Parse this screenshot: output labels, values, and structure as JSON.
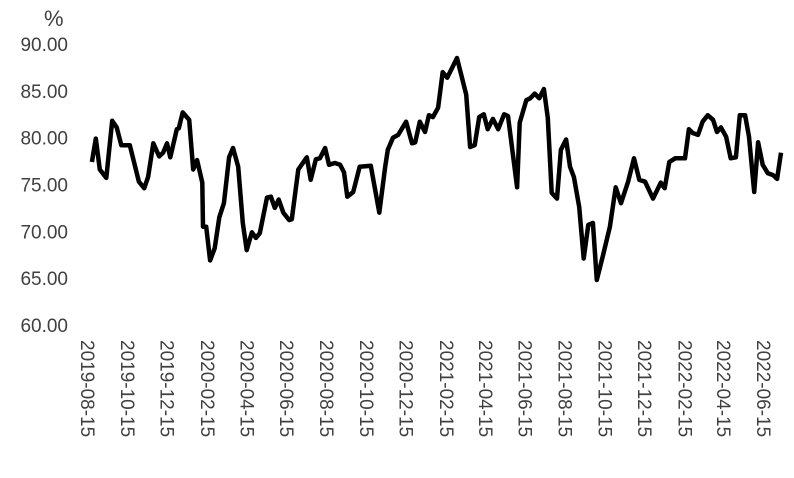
{
  "chart_data": {
    "type": "line",
    "title": "",
    "ylabel": "%",
    "xlabel": "",
    "ylim": [
      60,
      90
    ],
    "yticks": [
      "60.00",
      "65.00",
      "70.00",
      "75.00",
      "80.00",
      "85.00",
      "90.00"
    ],
    "xticks": [
      "2019-08-15",
      "2019-10-15",
      "2019-12-15",
      "2020-02-15",
      "2020-04-15",
      "2020-06-15",
      "2020-08-15",
      "2020-10-15",
      "2020-12-15",
      "2021-02-15",
      "2021-04-15",
      "2021-06-15",
      "2021-08-15",
      "2021-10-15",
      "2021-12-15",
      "2022-02-15",
      "2022-04-15",
      "2022-06-15"
    ],
    "grid": false,
    "line_color": "#000000",
    "series": [
      {
        "points": [
          [
            "2019-08-21",
            77.4
          ],
          [
            "2019-08-27",
            79.9
          ],
          [
            "2019-09-02",
            76.6
          ],
          [
            "2019-09-12",
            75.7
          ],
          [
            "2019-09-21",
            81.8
          ],
          [
            "2019-09-28",
            81.1
          ],
          [
            "2019-10-05",
            79.2
          ],
          [
            "2019-10-18",
            79.2
          ],
          [
            "2019-11-01",
            75.3
          ],
          [
            "2019-11-09",
            74.6
          ],
          [
            "2019-11-15",
            75.8
          ],
          [
            "2019-11-23",
            79.4
          ],
          [
            "2019-12-02",
            78.0
          ],
          [
            "2019-12-08",
            78.4
          ],
          [
            "2019-12-14",
            79.4
          ],
          [
            "2019-12-19",
            77.9
          ],
          [
            "2019-12-29",
            80.9
          ],
          [
            "2020-01-01",
            81.0
          ],
          [
            "2020-01-07",
            82.7
          ],
          [
            "2020-01-17",
            81.9
          ],
          [
            "2020-01-23",
            76.6
          ],
          [
            "2020-01-29",
            77.6
          ],
          [
            "2020-02-06",
            75.2
          ],
          [
            "2020-02-07",
            70.5
          ],
          [
            "2020-02-12",
            70.5
          ],
          [
            "2020-02-18",
            66.9
          ],
          [
            "2020-02-25",
            68.2
          ],
          [
            "2020-03-03",
            71.5
          ],
          [
            "2020-03-10",
            73.0
          ],
          [
            "2020-03-18",
            77.9
          ],
          [
            "2020-03-24",
            78.9
          ],
          [
            "2020-04-01",
            76.9
          ],
          [
            "2020-04-08",
            70.9
          ],
          [
            "2020-04-14",
            68.0
          ],
          [
            "2020-04-22",
            69.9
          ],
          [
            "2020-04-28",
            69.3
          ],
          [
            "2020-05-04",
            69.8
          ],
          [
            "2020-05-15",
            73.6
          ],
          [
            "2020-05-21",
            73.7
          ],
          [
            "2020-05-27",
            72.5
          ],
          [
            "2020-06-02",
            73.4
          ],
          [
            "2020-06-09",
            72.0
          ],
          [
            "2020-06-18",
            71.2
          ],
          [
            "2020-06-22",
            71.3
          ],
          [
            "2020-07-02",
            76.6
          ],
          [
            "2020-07-15",
            77.9
          ],
          [
            "2020-07-21",
            75.5
          ],
          [
            "2020-07-29",
            77.7
          ],
          [
            "2020-08-04",
            77.8
          ],
          [
            "2020-08-12",
            78.9
          ],
          [
            "2020-08-18",
            77.1
          ],
          [
            "2020-08-27",
            77.3
          ],
          [
            "2020-09-04",
            77.1
          ],
          [
            "2020-09-10",
            76.3
          ],
          [
            "2020-09-15",
            73.7
          ],
          [
            "2020-09-24",
            74.2
          ],
          [
            "2020-10-04",
            76.9
          ],
          [
            "2020-10-21",
            77.0
          ],
          [
            "2020-11-03",
            72.0
          ],
          [
            "2020-11-12",
            76.9
          ],
          [
            "2020-11-16",
            78.7
          ],
          [
            "2020-11-24",
            80.0
          ],
          [
            "2020-12-02",
            80.3
          ],
          [
            "2020-12-14",
            81.7
          ],
          [
            "2020-12-23",
            79.4
          ],
          [
            "2020-12-28",
            79.5
          ],
          [
            "2021-01-04",
            81.7
          ],
          [
            "2021-01-12",
            80.6
          ],
          [
            "2021-01-18",
            82.4
          ],
          [
            "2021-01-24",
            82.2
          ],
          [
            "2021-02-01",
            83.2
          ],
          [
            "2021-02-08",
            87.0
          ],
          [
            "2021-02-15",
            86.4
          ],
          [
            "2021-03-02",
            88.5
          ],
          [
            "2021-03-16",
            84.6
          ],
          [
            "2021-03-22",
            79.0
          ],
          [
            "2021-03-29",
            79.2
          ],
          [
            "2021-04-05",
            82.2
          ],
          [
            "2021-04-12",
            82.5
          ],
          [
            "2021-04-18",
            80.9
          ],
          [
            "2021-04-26",
            82.0
          ],
          [
            "2021-05-04",
            80.9
          ],
          [
            "2021-05-13",
            82.5
          ],
          [
            "2021-05-19",
            82.3
          ],
          [
            "2021-06-02",
            74.7
          ],
          [
            "2021-06-06",
            81.6
          ],
          [
            "2021-06-16",
            84.0
          ],
          [
            "2021-06-22",
            84.2
          ],
          [
            "2021-06-29",
            84.7
          ],
          [
            "2021-07-06",
            84.2
          ],
          [
            "2021-07-13",
            85.2
          ],
          [
            "2021-07-19",
            82.1
          ],
          [
            "2021-07-25",
            74.1
          ],
          [
            "2021-08-02",
            73.5
          ],
          [
            "2021-08-08",
            78.7
          ],
          [
            "2021-08-16",
            79.8
          ],
          [
            "2021-08-22",
            76.9
          ],
          [
            "2021-08-28",
            75.8
          ],
          [
            "2021-09-05",
            72.6
          ],
          [
            "2021-09-12",
            67.1
          ],
          [
            "2021-09-19",
            70.7
          ],
          [
            "2021-09-26",
            70.9
          ],
          [
            "2021-10-02",
            64.8
          ],
          [
            "2021-10-11",
            67.3
          ],
          [
            "2021-10-22",
            70.5
          ],
          [
            "2021-10-31",
            74.7
          ],
          [
            "2021-11-08",
            73.0
          ],
          [
            "2021-11-19",
            75.3
          ],
          [
            "2021-11-28",
            77.8
          ],
          [
            "2021-12-06",
            75.5
          ],
          [
            "2021-12-15",
            75.3
          ],
          [
            "2021-12-19",
            74.7
          ],
          [
            "2021-12-27",
            73.5
          ],
          [
            "2022-01-08",
            75.2
          ],
          [
            "2022-01-14",
            74.6
          ],
          [
            "2022-01-21",
            77.4
          ],
          [
            "2022-01-30",
            77.8
          ],
          [
            "2022-02-14",
            77.8
          ],
          [
            "2022-02-20",
            80.9
          ],
          [
            "2022-02-26",
            80.5
          ],
          [
            "2022-03-06",
            80.3
          ],
          [
            "2022-03-13",
            81.7
          ],
          [
            "2022-03-21",
            82.4
          ],
          [
            "2022-03-29",
            81.9
          ],
          [
            "2022-04-04",
            80.6
          ],
          [
            "2022-04-10",
            81.1
          ],
          [
            "2022-04-18",
            80.1
          ],
          [
            "2022-04-25",
            77.8
          ],
          [
            "2022-05-03",
            77.9
          ],
          [
            "2022-05-09",
            82.4
          ],
          [
            "2022-05-17",
            82.4
          ],
          [
            "2022-05-23",
            80.1
          ],
          [
            "2022-05-31",
            74.2
          ],
          [
            "2022-06-06",
            79.5
          ],
          [
            "2022-06-13",
            77.1
          ],
          [
            "2022-06-21",
            76.2
          ],
          [
            "2022-06-29",
            76.0
          ],
          [
            "2022-07-05",
            75.6
          ],
          [
            "2022-07-11",
            78.4
          ]
        ]
      }
    ]
  }
}
